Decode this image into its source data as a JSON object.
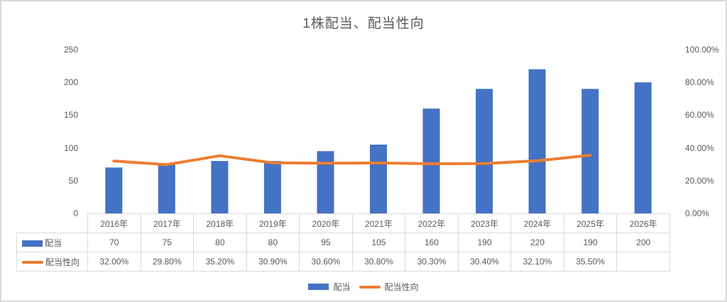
{
  "colors": {
    "bar": "#4472C4",
    "line": "#ED7D31",
    "axis_text": "#595959",
    "table_border": "#D9D9D9",
    "frame_border": "#D9D9D9"
  },
  "chart_data": {
    "type": "combo-bar-line",
    "title": "1株配当、配当性向",
    "categories": [
      "2016年",
      "2017年",
      "2018年",
      "2019年",
      "2020年",
      "2021年",
      "2022年",
      "2023年",
      "2024年",
      "2025年",
      "2026年"
    ],
    "series": [
      {
        "name": "配当",
        "type": "bar",
        "axis": "left",
        "values": [
          70,
          75,
          80,
          80,
          95,
          105,
          160,
          190,
          220,
          190,
          200
        ]
      },
      {
        "name": "配当性向",
        "type": "line",
        "axis": "right",
        "values_percent": [
          32.0,
          29.8,
          35.2,
          30.9,
          30.6,
          30.8,
          30.3,
          30.4,
          32.1,
          35.5,
          null
        ]
      }
    ],
    "left_axis": {
      "min": 0,
      "max": 250,
      "ticks_top_to_bottom": [
        "250",
        "200",
        "150",
        "100",
        "50",
        "0"
      ]
    },
    "right_axis": {
      "min": 0,
      "max": 100,
      "ticks_top_to_bottom": [
        "100.00%",
        "80.00%",
        "60.00%",
        "40.00%",
        "20.00%",
        "0.00%"
      ]
    },
    "grid": false,
    "legend_position": "bottom"
  },
  "table": {
    "corner_label": "",
    "rows": [
      {
        "label": "配当",
        "swatch": "bar",
        "cells": [
          "70",
          "75",
          "80",
          "80",
          "95",
          "105",
          "160",
          "190",
          "220",
          "190",
          "200"
        ]
      },
      {
        "label": "配当性向",
        "swatch": "line",
        "cells": [
          "32.00%",
          "29.80%",
          "35.20%",
          "30.90%",
          "30.60%",
          "30.80%",
          "30.30%",
          "30.40%",
          "32.10%",
          "35.50%",
          ""
        ]
      }
    ]
  },
  "legend": {
    "items": [
      {
        "label": "配当",
        "swatch": "bar"
      },
      {
        "label": "配当性向",
        "swatch": "line"
      }
    ]
  }
}
